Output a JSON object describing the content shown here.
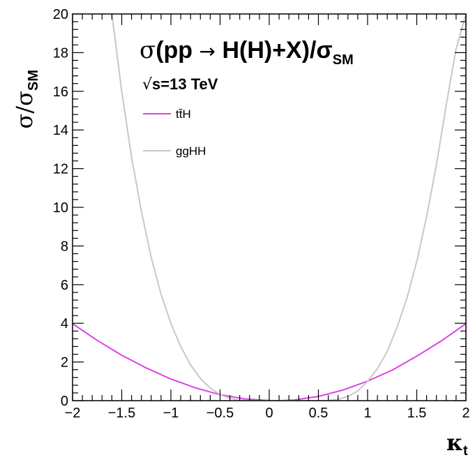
{
  "chart_data": {
    "type": "line",
    "title": {
      "sigma": "σ",
      "main": "(pp ",
      "arrow": "→",
      "tail": " H(H)+X)/σ",
      "sub": "SM"
    },
    "energy": {
      "root": "√",
      "text": "s=13 TeV"
    },
    "ylabel": {
      "main": "σ/σ",
      "sub": "SM"
    },
    "xlabel": {
      "main": "κ",
      "sub": "t"
    },
    "xlim": [
      -2,
      2
    ],
    "ylim": [
      0,
      20
    ],
    "x_ticks": [
      {
        "value": -2,
        "label": "−2"
      },
      {
        "value": -1.5,
        "label": "−1.5"
      },
      {
        "value": -1,
        "label": "−1"
      },
      {
        "value": -0.5,
        "label": "−0.5"
      },
      {
        "value": 0,
        "label": "0"
      },
      {
        "value": 0.5,
        "label": "0.5"
      },
      {
        "value": 1,
        "label": "1"
      },
      {
        "value": 1.5,
        "label": "1.5"
      },
      {
        "value": 2,
        "label": "2"
      }
    ],
    "y_ticks": [
      {
        "value": 0,
        "label": "0"
      },
      {
        "value": 2,
        "label": "2"
      },
      {
        "value": 4,
        "label": "4"
      },
      {
        "value": 6,
        "label": "6"
      },
      {
        "value": 8,
        "label": "8"
      },
      {
        "value": 10,
        "label": "10"
      },
      {
        "value": 12,
        "label": "12"
      },
      {
        "value": 14,
        "label": "14"
      },
      {
        "value": 16,
        "label": "16"
      },
      {
        "value": 18,
        "label": "18"
      },
      {
        "value": 20,
        "label": "20"
      }
    ],
    "series": [
      {
        "name": "tt̄H",
        "color": "#e040e8",
        "x": [
          -2.0,
          -1.75,
          -1.5,
          -1.25,
          -1.0,
          -0.75,
          -0.5,
          -0.25,
          0.0,
          0.1,
          0.25,
          0.5,
          0.75,
          1.0,
          1.25,
          1.5,
          1.75,
          2.0
        ],
        "y": [
          3.98,
          3.12,
          2.35,
          1.69,
          1.12,
          0.66,
          0.31,
          0.09,
          0.01,
          0.0,
          0.03,
          0.22,
          0.55,
          1.01,
          1.58,
          2.3,
          3.09,
          3.98
        ]
      },
      {
        "name": "ggHH",
        "color": "#c8c8c8",
        "x": [
          -1.6,
          -1.5,
          -1.4,
          -1.3,
          -1.2,
          -1.1,
          -1.0,
          -0.9,
          -0.8,
          -0.7,
          -0.6,
          -0.5,
          -0.4,
          -0.3,
          -0.2,
          -0.1,
          0.0,
          0.1,
          0.2,
          0.3,
          0.4,
          0.5,
          0.6,
          0.7,
          0.8,
          0.9,
          1.0,
          1.1,
          1.2,
          1.3,
          1.4,
          1.5,
          1.6,
          1.7,
          1.8,
          1.9,
          2.0
        ],
        "y": [
          20.0,
          16.0,
          12.6,
          9.8,
          7.4,
          5.5,
          4.0,
          2.8,
          1.85,
          1.15,
          0.65,
          0.32,
          0.12,
          0.02,
          0.0,
          0.0,
          0.0,
          0.0,
          0.0,
          0.0,
          0.0,
          0.0,
          0.01,
          0.08,
          0.22,
          0.5,
          1.0,
          1.65,
          2.55,
          3.8,
          5.3,
          7.2,
          9.5,
          12.2,
          15.3,
          18.2,
          20.0
        ]
      }
    ],
    "legend_position": "top-left"
  }
}
